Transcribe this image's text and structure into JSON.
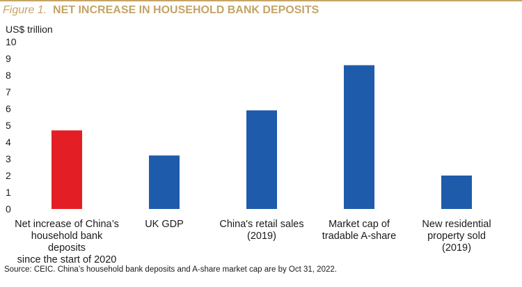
{
  "figure": {
    "prefix": "Figure 1.",
    "title": "NET INCREASE IN HOUSEHOLD BANK DEPOSITS",
    "title_color": "#c4a464",
    "rule_color": "#c4a464"
  },
  "chart_data": {
    "type": "bar",
    "title": "NET INCREASE IN HOUSEHOLD BANK DEPOSITS",
    "ylabel": "US$ trillion",
    "ylim": [
      0,
      10
    ],
    "yticks": [
      "10",
      "9",
      "8",
      "7",
      "6",
      "5",
      "4",
      "3",
      "2",
      "1",
      "0"
    ],
    "grid": false,
    "categories": [
      [
        "Net increase of China’s",
        "household bank deposits",
        "since the start of 2020"
      ],
      [
        "UK GDP"
      ],
      [
        "China's retail sales",
        "(2019)"
      ],
      [
        "Market cap of",
        "tradable A-share"
      ],
      [
        "New residential",
        "property sold",
        "(2019)"
      ]
    ],
    "values": [
      4.7,
      3.2,
      5.9,
      8.6,
      2.0
    ],
    "colors": [
      "#e31e24",
      "#1f5bab",
      "#1f5bab",
      "#1f5bab",
      "#1f5bab"
    ]
  },
  "source": "Source: CEIC. China’s household bank deposits and A-share market cap are by Oct 31, 2022."
}
